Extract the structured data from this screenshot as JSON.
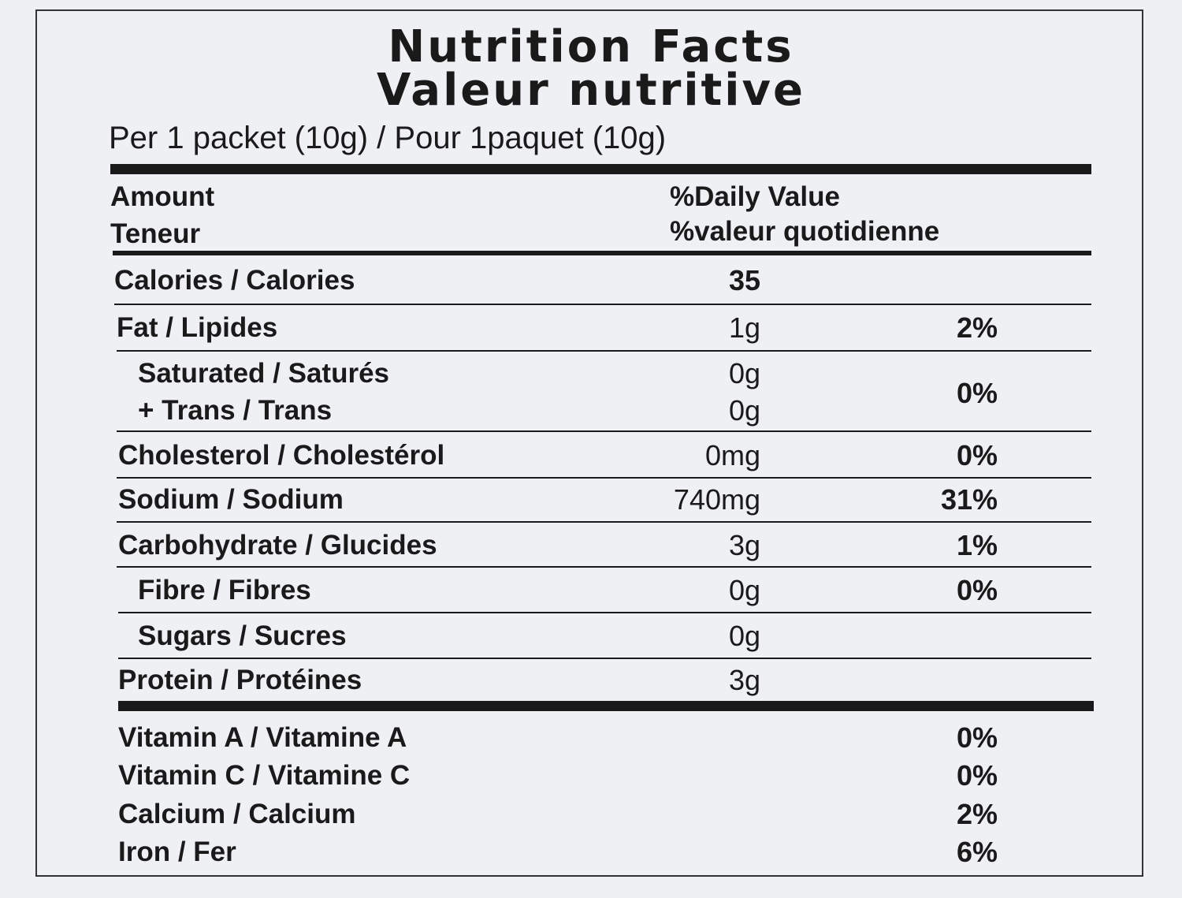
{
  "title": "Nutrition Facts",
  "title_fr": "Valeur nutritive",
  "serving": "Per 1 packet (10g) / Pour 1paquet (10g)",
  "header": {
    "amount": "Amount",
    "amount_fr": "Teneur",
    "daily_value": "%Daily Value",
    "daily_value_fr": "%valeur quotidienne"
  },
  "rows": [
    {
      "label": "Calories / Calories",
      "amount": "35"
    },
    {
      "label": "Fat / Lipides",
      "amount": "1g",
      "daily_value": "2%"
    },
    {
      "label": "Saturated / Saturés",
      "amount": "0g",
      "daily_value": "0%"
    },
    {
      "label": "+ Trans / Trans",
      "amount": "0g"
    },
    {
      "label": "Cholesterol / Cholestérol",
      "amount": "0mg",
      "daily_value": "0%"
    },
    {
      "label": "Sodium / Sodium",
      "amount": "740mg",
      "daily_value": "31%"
    },
    {
      "label": "Carbohydrate / Glucides",
      "amount": "3g",
      "daily_value": "1%"
    },
    {
      "label": "Fibre / Fibres",
      "amount": "0g",
      "daily_value": "0%"
    },
    {
      "label": "Sugars / Sucres",
      "amount": "0g"
    },
    {
      "label": "Protein / Protéines",
      "amount": "3g"
    }
  ],
  "vitamins": [
    {
      "label": "Vitamin A / Vitamine A",
      "daily_value": "0%"
    },
    {
      "label": "Vitamin C / Vitamine C",
      "daily_value": "0%"
    },
    {
      "label": "Calcium / Calcium",
      "daily_value": "2%"
    },
    {
      "label": "Iron / Fer",
      "daily_value": "6%"
    }
  ]
}
